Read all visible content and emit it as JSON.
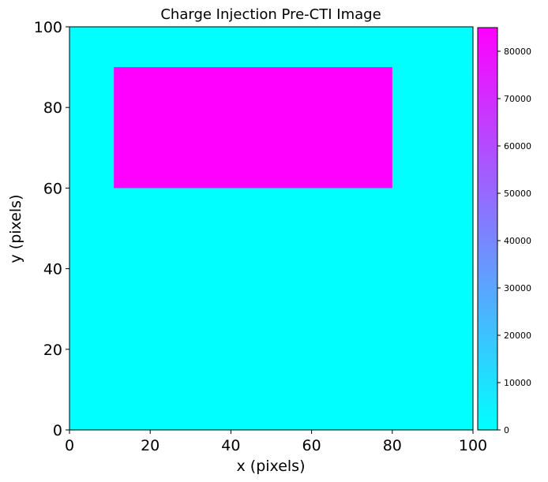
{
  "chart_data": {
    "type": "heatmap",
    "title": "Charge Injection Pre-CTI Image",
    "xlabel": "x (pixels)",
    "ylabel": "y (pixels)",
    "xlim": [
      0,
      100
    ],
    "ylim": [
      0,
      100
    ],
    "xticks": [
      0,
      20,
      40,
      60,
      80,
      100
    ],
    "yticks": [
      0,
      20,
      40,
      60,
      80,
      100
    ],
    "background_value": 0,
    "regions": [
      {
        "x0": 11,
        "x1": 80,
        "y0": 60,
        "y1": 90,
        "value": 85000
      }
    ],
    "colormap": "cool",
    "colormap_colors": [
      "#00ffff",
      "#ff00ff"
    ],
    "colorbar": {
      "vmin": 0,
      "vmax": 85000,
      "ticks": [
        0,
        10000,
        20000,
        30000,
        40000,
        50000,
        60000,
        70000,
        80000
      ]
    }
  }
}
